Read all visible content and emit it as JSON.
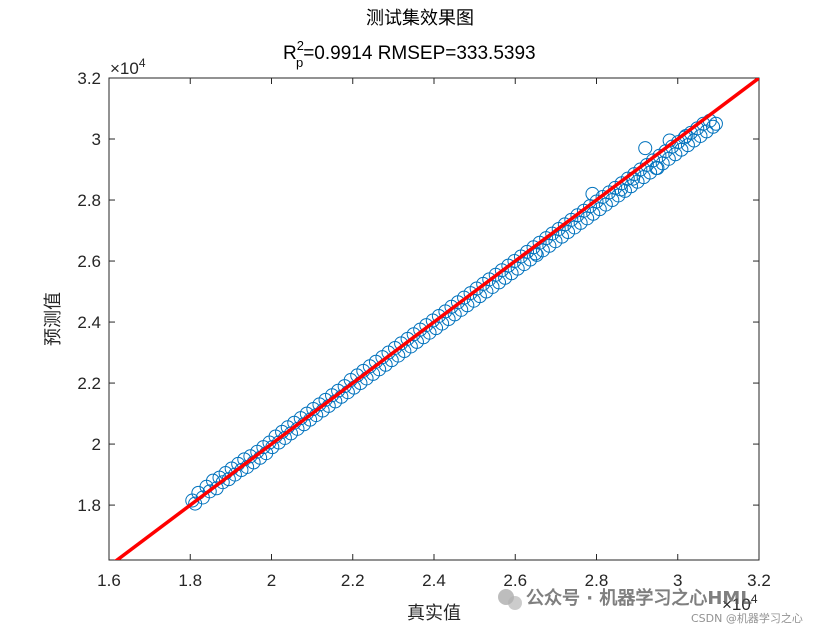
{
  "chart_data": {
    "type": "scatter",
    "title": "测试集效果图",
    "subtitle_lead": "R",
    "subtitle_sup": "2",
    "subtitle_sub": "p",
    "subtitle_rest": "=0.9914  RMSEP=333.5393",
    "xlabel": "真实值",
    "ylabel": "预测值",
    "x_exponent": "×10",
    "x_exponent_power": "4",
    "y_exponent": "×10",
    "y_exponent_power": "4",
    "xlim": [
      16000,
      32000
    ],
    "ylim": [
      16200,
      32000
    ],
    "x_ticks": [
      16000,
      18000,
      20000,
      22000,
      24000,
      26000,
      28000,
      30000,
      32000
    ],
    "x_tick_labels": [
      "1.6",
      "1.8",
      "2",
      "2.2",
      "2.4",
      "2.6",
      "2.8",
      "3",
      "3.2"
    ],
    "y_ticks": [
      18000,
      20000,
      22000,
      24000,
      26000,
      28000,
      30000,
      32000
    ],
    "y_tick_labels": [
      "1.8",
      "2",
      "2.2",
      "2.4",
      "2.6",
      "2.8",
      "3",
      "3.2"
    ],
    "grid": false,
    "series": [
      {
        "marker": "open-circle",
        "color": "#0072BD",
        "x": [
          18050,
          18120,
          18200,
          18310,
          18400,
          18480,
          18560,
          18650,
          18720,
          18800,
          18870,
          18950,
          19020,
          19100,
          19180,
          19260,
          19330,
          19400,
          19480,
          19560,
          19650,
          19720,
          19800,
          19870,
          19950,
          20020,
          20100,
          20180,
          20260,
          20330,
          20400,
          20480,
          20560,
          20640,
          20720,
          20800,
          20870,
          20950,
          21030,
          21100,
          21180,
          21260,
          21330,
          21410,
          21490,
          21570,
          21640,
          21720,
          21800,
          21880,
          21950,
          22030,
          22110,
          22190,
          22260,
          22340,
          22420,
          22500,
          22570,
          22650,
          22730,
          22810,
          22880,
          22960,
          23040,
          23120,
          23190,
          23270,
          23350,
          23430,
          23500,
          23580,
          23660,
          23740,
          23810,
          23890,
          23970,
          24050,
          24120,
          24200,
          24280,
          24360,
          24430,
          24510,
          24590,
          24670,
          24740,
          24820,
          24900,
          24980,
          25050,
          25130,
          25210,
          25290,
          25360,
          25440,
          25520,
          25600,
          25670,
          25750,
          25830,
          25910,
          25980,
          26060,
          26140,
          26220,
          26290,
          26370,
          26450,
          26530,
          26600,
          26680,
          26760,
          26840,
          26910,
          26990,
          27070,
          27150,
          27220,
          27300,
          27380,
          27460,
          27530,
          27610,
          27690,
          27770,
          27840,
          27920,
          28000,
          28080,
          28150,
          28230,
          28310,
          28390,
          28460,
          28540,
          28620,
          28700,
          28770,
          28850,
          28930,
          29010,
          29080,
          29160,
          29240,
          29320,
          29390,
          29470,
          29550,
          29630,
          29700,
          29780,
          29860,
          29940,
          30010,
          30090,
          30170,
          30250,
          30320,
          30400,
          30480,
          30560,
          30630,
          30710,
          30790,
          30870,
          30940,
          29200,
          29500,
          28900,
          28600,
          29800,
          30200,
          27900,
          26500
        ],
        "y": [
          18150,
          18050,
          18400,
          18250,
          18600,
          18450,
          18800,
          18550,
          18900,
          18750,
          19050,
          18850,
          19200,
          19000,
          19350,
          19150,
          19500,
          19250,
          19600,
          19400,
          19750,
          19550,
          19900,
          19700,
          20050,
          19900,
          20250,
          20050,
          20400,
          20200,
          20550,
          20350,
          20700,
          20500,
          20850,
          20650,
          21000,
          20800,
          21150,
          20950,
          21300,
          21100,
          21450,
          21250,
          21600,
          21400,
          21750,
          21550,
          21900,
          21700,
          22100,
          21850,
          22250,
          22000,
          22400,
          22150,
          22550,
          22300,
          22700,
          22450,
          22850,
          22600,
          23000,
          22750,
          23150,
          22900,
          23300,
          23050,
          23450,
          23200,
          23600,
          23350,
          23750,
          23500,
          23900,
          23650,
          24050,
          23800,
          24200,
          23950,
          24350,
          24100,
          24500,
          24250,
          24650,
          24400,
          24800,
          24550,
          24950,
          24700,
          25100,
          24850,
          25250,
          25000,
          25400,
          25150,
          25550,
          25300,
          25700,
          25450,
          25850,
          25600,
          26000,
          25750,
          26150,
          25900,
          26300,
          26050,
          26450,
          26200,
          26600,
          26350,
          26750,
          26500,
          26900,
          26650,
          27050,
          26800,
          27200,
          26950,
          27350,
          27100,
          27500,
          27250,
          27650,
          27400,
          27800,
          27550,
          27950,
          27700,
          28100,
          27850,
          28250,
          28000,
          28400,
          28150,
          28550,
          28300,
          28700,
          28450,
          28850,
          28600,
          29000,
          28750,
          29150,
          28900,
          29300,
          29050,
          29450,
          29200,
          29600,
          29350,
          29750,
          29500,
          29900,
          29650,
          30050,
          29800,
          30200,
          29950,
          30350,
          30100,
          30500,
          30250,
          30600,
          30400,
          30500,
          29700,
          29050,
          28700,
          28350,
          29950,
          30100,
          28200,
          26250
        ]
      }
    ],
    "reference_line": {
      "color": "#FF0000",
      "x": [
        16000,
        32000
      ],
      "y": [
        16000,
        32000
      ]
    }
  },
  "watermark": {
    "brand": "公众号 · 机器学习之心HML",
    "footer": "CSDN @机器学习之心"
  }
}
